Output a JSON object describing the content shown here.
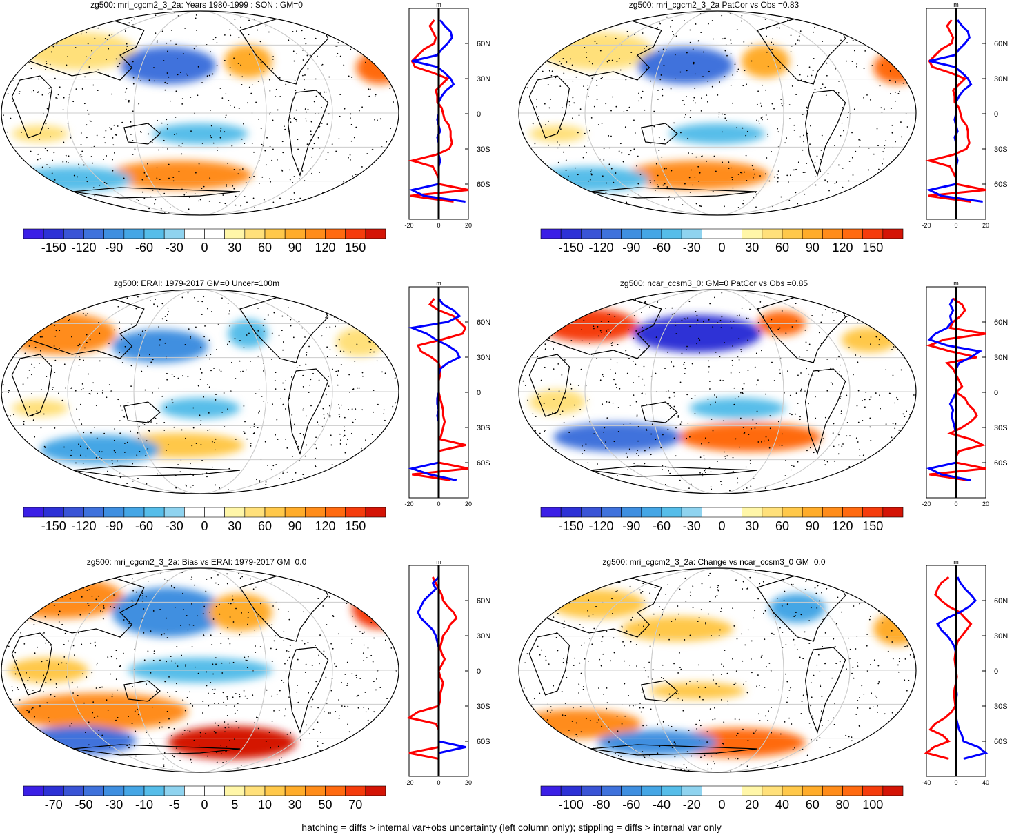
{
  "footer": "hatching = diffs > internal var+obs uncertainty (left column only); stippling = diffs > internal var only",
  "colormap": [
    "#3b1fe6",
    "#2d31d6",
    "#3a54d6",
    "#3f72dc",
    "#3f8fe0",
    "#45a6e5",
    "#56bde9",
    "#8fd3ef",
    "#ffffff",
    "#ffffff",
    "#fff6a8",
    "#ffe07a",
    "#ffc84a",
    "#ffac2a",
    "#ff8c1a",
    "#ff6a10",
    "#f53c0c",
    "#d41406"
  ],
  "land_color": "#000000",
  "profile_colors": {
    "positive": "#ff0000",
    "negative": "#0000ff",
    "zero_line": "#000000"
  },
  "panels": [
    {
      "title": "zg500: mri_cgcm2_3_2a: Years 1980-1999 : SON : GM=0",
      "cbar_labels": [
        "-150",
        "-120",
        "-90",
        "-60",
        "-30",
        "0",
        "30",
        "60",
        "90",
        "120",
        "150"
      ],
      "profile_unit": "m",
      "profile_xticks": [
        "-20",
        "0",
        "20"
      ],
      "lat_labels": [
        "60N",
        "30N",
        "0",
        "30S",
        "60S"
      ],
      "profile_series": [
        {
          "name": "red",
          "color": "#ff0000",
          "lat": [
            80,
            75,
            70,
            65,
            60,
            55,
            50,
            45,
            40,
            35,
            30,
            25,
            20,
            15,
            10,
            5,
            0,
            -5,
            -10,
            -15,
            -20,
            -25,
            -30,
            -35,
            -40,
            -45,
            -50,
            -55,
            -60,
            -65,
            -70,
            -75
          ],
          "values": [
            -3,
            -6,
            -4,
            -2,
            -3,
            -10,
            -14,
            -18,
            -16,
            -4,
            6,
            2,
            -2,
            -1,
            -1,
            2,
            3,
            4,
            7,
            8,
            8,
            9,
            7,
            -2,
            -18,
            -4,
            -2,
            0,
            0,
            20,
            -19,
            10
          ]
        },
        {
          "name": "blue",
          "color": "#0000ff",
          "lat": [
            80,
            75,
            70,
            65,
            60,
            55,
            50,
            45,
            40,
            35,
            30,
            25,
            20,
            15,
            10,
            5,
            0,
            -5,
            -10,
            -15,
            -20,
            -25,
            -30,
            -35,
            -40,
            -45,
            -50,
            -55,
            -60,
            -65,
            -70,
            -75
          ],
          "values": [
            1,
            4,
            8,
            9,
            6,
            2,
            -1,
            -18,
            -1,
            4,
            8,
            10,
            5,
            2,
            0,
            0,
            0,
            -1,
            0,
            1,
            -1,
            0,
            0,
            0,
            1,
            0,
            0,
            0,
            0,
            -18,
            -10,
            18
          ]
        }
      ]
    },
    {
      "title": "zg500: mri_cgcm2_3_2a PatCor vs Obs =0.83",
      "cbar_labels": [
        "-150",
        "-120",
        "-90",
        "-60",
        "-30",
        "0",
        "30",
        "60",
        "90",
        "120",
        "150"
      ],
      "profile_unit": "m",
      "profile_xticks": [
        "-20",
        "0",
        "20"
      ],
      "lat_labels": [
        "60N",
        "30N",
        "0",
        "30S",
        "60S"
      ],
      "profile_series": [
        {
          "name": "red",
          "color": "#ff0000",
          "lat": [
            80,
            75,
            70,
            65,
            60,
            55,
            50,
            45,
            40,
            35,
            30,
            25,
            20,
            15,
            10,
            5,
            0,
            -5,
            -10,
            -15,
            -20,
            -25,
            -30,
            -35,
            -40,
            -45,
            -50,
            -55,
            -60,
            -65,
            -70,
            -75
          ],
          "values": [
            -3,
            -6,
            -4,
            -2,
            -3,
            -10,
            -14,
            -18,
            -16,
            -4,
            6,
            2,
            -2,
            -1,
            -1,
            2,
            3,
            4,
            7,
            8,
            8,
            9,
            7,
            -2,
            -18,
            -4,
            -2,
            0,
            0,
            20,
            -19,
            10
          ]
        },
        {
          "name": "blue",
          "color": "#0000ff",
          "lat": [
            80,
            75,
            70,
            65,
            60,
            55,
            50,
            45,
            40,
            35,
            30,
            25,
            20,
            15,
            10,
            5,
            0,
            -5,
            -10,
            -15,
            -20,
            -25,
            -30,
            -35,
            -40,
            -45,
            -50,
            -55,
            -60,
            -65,
            -70,
            -75
          ],
          "values": [
            1,
            4,
            8,
            9,
            6,
            2,
            -1,
            -18,
            -1,
            4,
            8,
            10,
            5,
            2,
            0,
            0,
            0,
            -1,
            0,
            1,
            -1,
            0,
            0,
            0,
            1,
            0,
            0,
            0,
            0,
            -18,
            -10,
            18
          ]
        }
      ]
    },
    {
      "title": "zg500: ERAI: 1979-2017 GM=0 Uncer=100m",
      "cbar_labels": [
        "-150",
        "-120",
        "-90",
        "-60",
        "-30",
        "0",
        "30",
        "60",
        "90",
        "120",
        "150"
      ],
      "profile_unit": "m",
      "profile_xticks": [
        "-20",
        "0",
        "20"
      ],
      "lat_labels": [
        "60N",
        "30N",
        "0",
        "30S",
        "60S"
      ],
      "profile_series": [
        {
          "name": "red",
          "color": "#ff0000",
          "lat": [
            80,
            75,
            70,
            65,
            60,
            55,
            50,
            45,
            40,
            35,
            30,
            25,
            20,
            15,
            10,
            5,
            0,
            -5,
            -10,
            -15,
            -20,
            -25,
            -30,
            -35,
            -40,
            -45,
            -50,
            -55,
            -60,
            -65,
            -70,
            -75
          ],
          "values": [
            -3,
            -6,
            0,
            10,
            14,
            18,
            16,
            2,
            -14,
            -12,
            -5,
            0,
            1,
            1,
            0,
            0,
            0,
            1,
            2,
            3,
            3,
            4,
            3,
            2,
            1,
            18,
            0,
            0,
            0,
            20,
            -18,
            8
          ]
        },
        {
          "name": "blue",
          "color": "#0000ff",
          "lat": [
            80,
            75,
            70,
            65,
            60,
            55,
            50,
            45,
            40,
            35,
            30,
            25,
            20,
            15,
            10,
            5,
            0,
            -5,
            -10,
            -15,
            -20,
            -25,
            -30,
            -35,
            -40,
            -45,
            -50,
            -55,
            -60,
            -65,
            -70,
            -75
          ],
          "values": [
            0,
            3,
            10,
            14,
            6,
            -18,
            -8,
            -2,
            6,
            12,
            14,
            6,
            1,
            0,
            0,
            0,
            0,
            -1,
            -1,
            0,
            -1,
            0,
            0,
            0,
            0,
            0,
            0,
            0,
            0,
            -18,
            -6,
            12
          ]
        }
      ]
    },
    {
      "title": "zg500: ncar_ccsm3_0: GM=0 PatCor vs Obs =0.85",
      "cbar_labels": [
        "-150",
        "-120",
        "-90",
        "-60",
        "-30",
        "0",
        "30",
        "60",
        "90",
        "120",
        "150"
      ],
      "profile_unit": "m",
      "profile_xticks": [
        "-20",
        "0",
        "20"
      ],
      "lat_labels": [
        "60N",
        "30N",
        "0",
        "30S",
        "60S"
      ],
      "profile_series": [
        {
          "name": "red",
          "color": "#ff0000",
          "lat": [
            80,
            75,
            70,
            65,
            60,
            55,
            50,
            45,
            40,
            35,
            30,
            25,
            20,
            15,
            10,
            5,
            0,
            -5,
            -10,
            -15,
            -20,
            -25,
            -30,
            -35,
            -40,
            -45,
            -50,
            -55,
            -60,
            -65,
            -70,
            -75
          ],
          "values": [
            -2,
            4,
            6,
            3,
            -2,
            -4,
            20,
            -8,
            -18,
            -4,
            14,
            -6,
            -2,
            0,
            2,
            4,
            0,
            6,
            8,
            12,
            14,
            10,
            4,
            -4,
            10,
            18,
            2,
            0,
            0,
            20,
            -18,
            8
          ]
        },
        {
          "name": "blue",
          "color": "#0000ff",
          "lat": [
            80,
            75,
            70,
            65,
            60,
            55,
            50,
            45,
            40,
            35,
            30,
            25,
            20,
            15,
            10,
            5,
            0,
            -5,
            -10,
            -15,
            -20,
            -25,
            -30,
            -35,
            -40,
            -45,
            -50,
            -55,
            -60,
            -65,
            -70,
            -75
          ],
          "values": [
            -2,
            -4,
            -2,
            -4,
            -3,
            -6,
            -14,
            -18,
            -6,
            16,
            10,
            2,
            0,
            0,
            0,
            0,
            0,
            -2,
            -4,
            -2,
            -3,
            -2,
            -1,
            0,
            0,
            0,
            0,
            0,
            0,
            -18,
            -10,
            10
          ]
        }
      ]
    },
    {
      "title": "zg500: mri_cgcm2_3_2a: Bias vs ERAI: 1979-2017  GM=0.0",
      "cbar_labels": [
        "-70",
        "-50",
        "-30",
        "-10",
        "-5",
        "0",
        "5",
        "10",
        "30",
        "50",
        "70"
      ],
      "profile_unit": "m",
      "profile_xticks": [
        "-20",
        "0",
        "20"
      ],
      "lat_labels": [
        "60N",
        "30N",
        "0",
        "30S",
        "60S"
      ],
      "profile_series": [
        {
          "name": "red",
          "color": "#ff0000",
          "lat": [
            80,
            75,
            70,
            65,
            60,
            55,
            50,
            45,
            40,
            35,
            30,
            25,
            20,
            15,
            10,
            5,
            0,
            -5,
            -10,
            -15,
            -20,
            -25,
            -30,
            -35,
            -40,
            -45,
            -50,
            -55,
            -60,
            -65,
            -70,
            -75
          ],
          "values": [
            -4,
            -2,
            0,
            2,
            3,
            6,
            10,
            12,
            8,
            6,
            3,
            2,
            1,
            2,
            4,
            2,
            0,
            1,
            3,
            2,
            1,
            1,
            0,
            -14,
            -20,
            -2,
            0,
            0,
            0,
            0,
            -20,
            0
          ]
        },
        {
          "name": "blue",
          "color": "#0000ff",
          "lat": [
            80,
            75,
            70,
            65,
            60,
            55,
            50,
            45,
            40,
            35,
            30,
            25,
            20,
            15,
            10,
            5,
            0,
            -5,
            -10,
            -15,
            -20,
            -25,
            -30,
            -35,
            -40,
            -45,
            -50,
            -55,
            -60,
            -65,
            -70,
            -75
          ],
          "values": [
            0,
            -4,
            -2,
            -6,
            -10,
            -12,
            -14,
            -12,
            -8,
            -4,
            -2,
            -1,
            0,
            0,
            0,
            0,
            0,
            0,
            0,
            0,
            0,
            0,
            0,
            0,
            0,
            0,
            0,
            0,
            0,
            18,
            0,
            0
          ]
        }
      ]
    },
    {
      "title": "zg500: mri_cgcm2_3_2a: Change vs ncar_ccsm3_0 GM=0.0",
      "cbar_labels": [
        "-100",
        "-80",
        "-60",
        "-40",
        "-20",
        "0",
        "20",
        "40",
        "60",
        "80",
        "100"
      ],
      "profile_unit": "m",
      "profile_xticks": [
        "-40",
        "0",
        "40"
      ],
      "lat_labels": [
        "60N",
        "30N",
        "0",
        "30S",
        "60S"
      ],
      "profile_series": [
        {
          "name": "red",
          "color": "#ff0000",
          "lat": [
            80,
            75,
            70,
            65,
            60,
            55,
            50,
            45,
            40,
            35,
            30,
            25,
            20,
            15,
            10,
            5,
            0,
            -5,
            -10,
            -15,
            -20,
            -25,
            -30,
            -35,
            -40,
            -45,
            -50,
            -55,
            -60,
            -65,
            -70,
            -75
          ],
          "values": [
            -10,
            -20,
            -25,
            -28,
            -20,
            -10,
            5,
            12,
            20,
            14,
            8,
            2,
            0,
            -1,
            -2,
            -1,
            0,
            1,
            0,
            -2,
            -3,
            -2,
            -1,
            -6,
            -15,
            -28,
            -35,
            -18,
            -10,
            -30,
            -40,
            -10
          ]
        },
        {
          "name": "blue",
          "color": "#0000ff",
          "lat": [
            80,
            75,
            70,
            65,
            60,
            55,
            50,
            45,
            40,
            35,
            30,
            25,
            20,
            15,
            10,
            5,
            0,
            -5,
            -10,
            -15,
            -20,
            -25,
            -30,
            -35,
            -40,
            -45,
            -50,
            -55,
            -60,
            -65,
            -70,
            -75
          ],
          "values": [
            2,
            6,
            12,
            20,
            26,
            18,
            5,
            -12,
            -25,
            -20,
            -12,
            -6,
            -2,
            0,
            0,
            0,
            0,
            0,
            0,
            0,
            1,
            0,
            0,
            0,
            0,
            2,
            4,
            8,
            10,
            30,
            40,
            10
          ]
        }
      ]
    }
  ]
}
